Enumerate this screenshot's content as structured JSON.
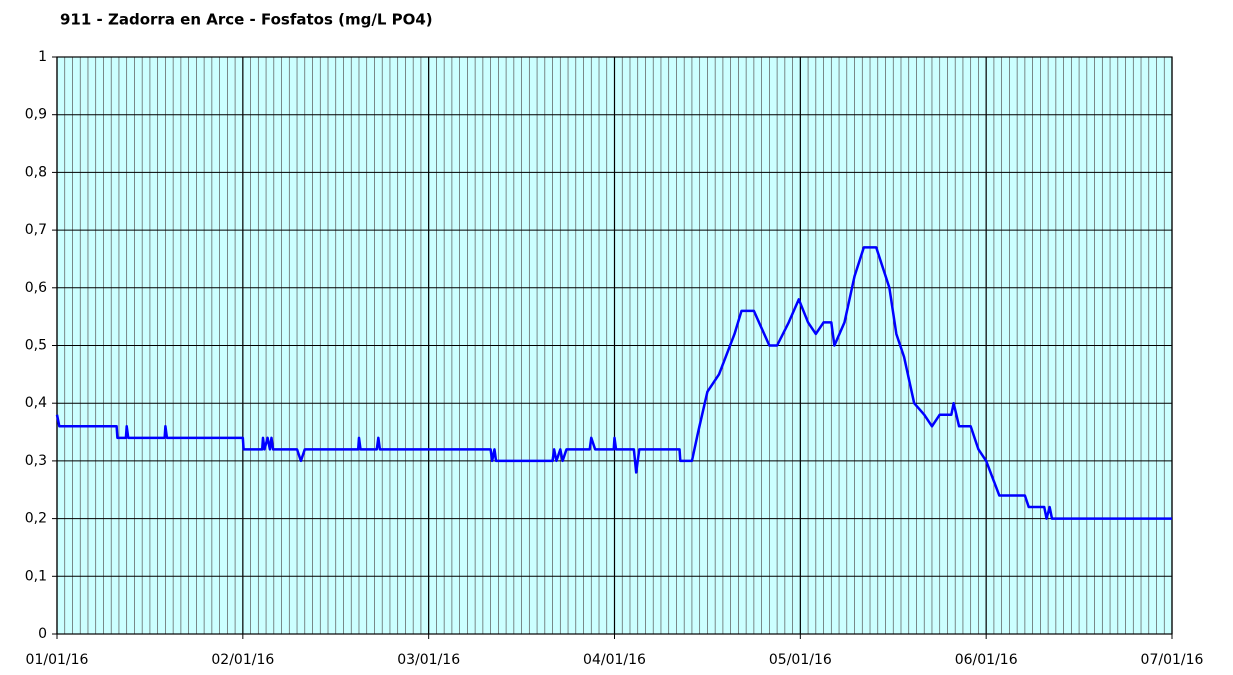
{
  "chart_data": {
    "type": "line",
    "title": "911 - Zadorra en Arce - Fosfatos (mg/L PO4)",
    "series": [
      {
        "color": "#0000ff",
        "x": [
          0,
          0.3,
          7.7,
          7.8,
          8.9,
          9,
          9.2,
          13.9,
          14,
          14.2,
          24,
          24.1,
          26.5,
          26.6,
          26.8,
          27.2,
          27.5,
          27.7,
          27.9,
          31,
          31.5,
          32,
          38.9,
          39,
          39.2,
          41.3,
          41.5,
          41.7,
          56,
          56.2,
          56.5,
          56.7,
          64,
          64.2,
          64.5,
          65,
          65.3,
          65.8,
          68.8,
          69,
          69.5,
          71.9,
          72,
          72.2,
          74.5,
          74.8,
          75.2,
          80.4,
          80.5,
          82,
          82.8,
          84,
          85.5,
          87.5,
          88.4,
          90,
          92,
          93,
          94.5,
          95.8,
          97,
          98,
          99,
          100,
          100.4,
          101.7,
          103,
          104.2,
          105.8,
          107.5,
          108.4,
          109.4,
          110.7,
          112,
          113,
          114,
          115.5,
          115.8,
          116.5,
          118,
          119,
          120,
          121.7,
          125,
          125.5,
          127.5,
          127.8,
          128.2,
          128.5,
          144
        ],
        "values": [
          0.38,
          0.36,
          0.36,
          0.34,
          0.34,
          0.36,
          0.34,
          0.34,
          0.36,
          0.34,
          0.34,
          0.32,
          0.32,
          0.34,
          0.32,
          0.34,
          0.32,
          0.34,
          0.32,
          0.32,
          0.3,
          0.32,
          0.32,
          0.34,
          0.32,
          0.32,
          0.34,
          0.32,
          0.32,
          0.3,
          0.32,
          0.3,
          0.3,
          0.32,
          0.3,
          0.32,
          0.3,
          0.32,
          0.32,
          0.34,
          0.32,
          0.32,
          0.34,
          0.32,
          0.32,
          0.28,
          0.32,
          0.32,
          0.3,
          0.3,
          0.35,
          0.42,
          0.45,
          0.52,
          0.56,
          0.56,
          0.5,
          0.5,
          0.54,
          0.58,
          0.54,
          0.52,
          0.54,
          0.54,
          0.5,
          0.54,
          0.62,
          0.67,
          0.67,
          0.6,
          0.52,
          0.48,
          0.4,
          0.38,
          0.36,
          0.38,
          0.38,
          0.4,
          0.36,
          0.36,
          0.32,
          0.3,
          0.24,
          0.24,
          0.22,
          0.22,
          0.2,
          0.22,
          0.2,
          0.2
        ]
      }
    ],
    "xlim": [
      0,
      144
    ],
    "xticks": [
      {
        "value": 0,
        "label": "01/01/16"
      },
      {
        "value": 24,
        "label": "02/01/16"
      },
      {
        "value": 48,
        "label": "03/01/16"
      },
      {
        "value": 72,
        "label": "04/01/16"
      },
      {
        "value": 96,
        "label": "05/01/16"
      },
      {
        "value": 120,
        "label": "06/01/16"
      },
      {
        "value": 144,
        "label": "07/01/16"
      }
    ],
    "x_minor_tick_interval": 1,
    "ylim": [
      0,
      1
    ],
    "yticks": [
      0,
      {
        "value": 0.1,
        "label": "0,1"
      },
      {
        "value": 0.2,
        "label": "0,2"
      },
      {
        "value": 0.3,
        "label": "0,3"
      },
      {
        "value": 0.4,
        "label": "0,4"
      },
      {
        "value": 0.5,
        "label": "0,5"
      },
      {
        "value": 0.6,
        "label": "0,6"
      },
      {
        "value": 0.7,
        "label": "0,7"
      },
      {
        "value": 0.8,
        "label": "0,8"
      },
      {
        "value": 0.9,
        "label": "0,9"
      },
      1
    ],
    "grid": true,
    "background": "#ccffff"
  }
}
